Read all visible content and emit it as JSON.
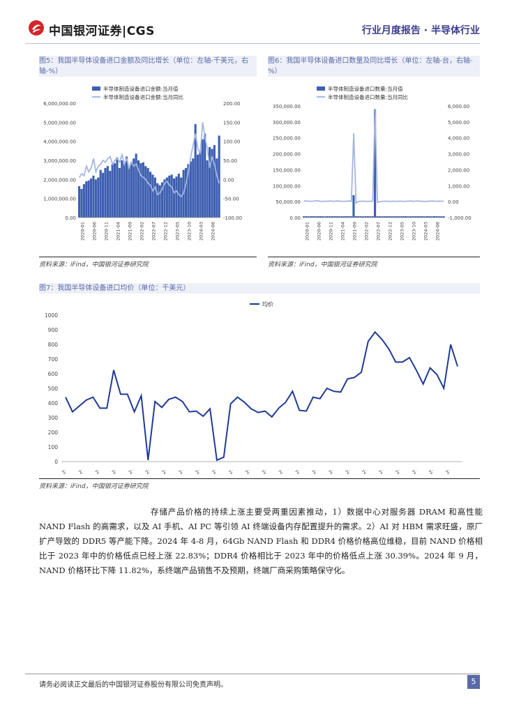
{
  "header": {
    "logo_text": "中国银河证券|CGS",
    "report_type": "行业月度报告 · 半导体行业"
  },
  "fig5": {
    "title": "图5：我国半导体设备进口金额及同比增长（单位：左轴-千美元，右轴-%）",
    "source": "资料来源：iFind，中国银河证券研究院"
  },
  "fig6": {
    "title": "图6：我国半导体设备进口数量及同比增长（单位：左轴-台，右轴-%）",
    "source": "资料来源：iFind，中国银河证券研究院"
  },
  "fig7": {
    "title": "图7：我国半导体设备进口均价（单位：千美元）",
    "source": "资料来源：iFind，中国银河证券研究院"
  },
  "body_text": "存储产品价格的持续上涨主要受两重因素推动，1）数据中心对服务器 DRAM 和高性能 NAND Flash 的高需求，以及 AI 手机、AI PC 等引领 AI 终端设备内存配置提升的需求。2）AI 对 HBM 需求旺盛，原厂扩产导致的 DDR5 等产能下降。2024 年 4-8 月，64Gb NAND Flash 和 DDR4 价格价格高位维稳，目前 NAND 价格相比于 2023 年中的价格低点已经上涨 22.83%；DDR4 价格相比于 2023 年中的价格低点上涨 30.39%。2024 年 9 月，NAND 价格环比下降 11.82%，系终端产品销售不及预期，终端厂商采购策略保守化。",
  "footer": {
    "disclaimer": "请务必阅读正文最后的中国银河证券股份有限公司免责声明。",
    "page": "5"
  },
  "chart_data": [
    {
      "type": "bar",
      "title": "图5：我国半导体设备进口金额及同比增长（单位：左轴-千美元，右轴-%）",
      "legend": [
        "半导体制造设备进口金额:当月值",
        "半导体制造设备进口金额:当月同比"
      ],
      "legend_position": "top-center",
      "x_ticks": [
        "2020-01",
        "2020-06",
        "2020-11",
        "2021-04",
        "2021-09",
        "2022-02",
        "2022-07",
        "2022-12",
        "2023-05",
        "2023-10",
        "2024-03",
        "2024-08"
      ],
      "y_ticks": [
        "6,000,000.00",
        "5,000,000.00",
        "4,000,000.00",
        "3,000,000.00",
        "2,000,000.00",
        "1,000,000.00",
        "0.00"
      ],
      "y2_ticks": [
        "200.00",
        "150.00",
        "100.00",
        "50.00",
        "0.00",
        "-50.00",
        "-100.00"
      ],
      "ylim": [
        0,
        6000000
      ],
      "y2lim": [
        -100,
        200
      ],
      "series": [
        {
          "name": "半导体制造设备进口金额:当月值",
          "type": "bar",
          "values": [
            1650000,
            1500000,
            1750000,
            1900000,
            1950000,
            2050000,
            2200000,
            2000000,
            2100000,
            2500000,
            2350000,
            2600000,
            2700000,
            2450000,
            2800000,
            2850000,
            3150000,
            2600000,
            3000000,
            2850000,
            3200000,
            2700000,
            2900000,
            3100000,
            3350000,
            3000000,
            2850000,
            2900000,
            2700000,
            2600000,
            2400000,
            2250000,
            2100000,
            1800000,
            1700000,
            1850000,
            2000000,
            2100000,
            2200000,
            2250000,
            2050000,
            2150000,
            2300000,
            2100000,
            2500000,
            2600000,
            2800000,
            2950000,
            3100000,
            4900000,
            3300000,
            3500000,
            4100000,
            4400000,
            3000000,
            3700000,
            3600000,
            3800000,
            3100000,
            4300000
          ]
        },
        {
          "name": "半导体制造设备进口金额:当月同比",
          "type": "line",
          "values": [
            5,
            15,
            10,
            35,
            20,
            30,
            55,
            20,
            35,
            40,
            50,
            45,
            55,
            60,
            40,
            50,
            55,
            45,
            65,
            40,
            55,
            30,
            45,
            35,
            40,
            25,
            10,
            5,
            0,
            -10,
            -15,
            -30,
            -20,
            -40,
            -35,
            -25,
            -10,
            -5,
            -15,
            -20,
            -35,
            -30,
            -40,
            -45,
            -35,
            -10,
            20,
            60,
            90,
            120,
            80,
            70,
            150,
            110,
            80,
            30,
            60,
            40,
            10,
            -10
          ]
        }
      ]
    },
    {
      "type": "bar",
      "title": "图6：我国半导体设备进口数量及同比增长（单位：左轴-台，右轴-%）",
      "legend": [
        "半导体制造设备进口数量:当月值",
        "半导体制造设备进口数量:当月同比"
      ],
      "legend_position": "top-center",
      "x_ticks": [
        "2020-01",
        "2020-06",
        "2020-11",
        "2021-04",
        "2021-09",
        "2022-02",
        "2022-07",
        "2022-12",
        "2023-05",
        "2023-10",
        "2024-03",
        "2024-08"
      ],
      "y_ticks": [
        "350,000.00",
        "300,000.00",
        "250,000.00",
        "200,000.00",
        "150,000.00",
        "100,000.00",
        "50,000.00",
        "0.00"
      ],
      "y2_ticks": [
        "6,000.00",
        "5,000.00",
        "4,000.00",
        "3,000.00",
        "2,000.00",
        "1,000.00",
        "0.00",
        "-1,000.00"
      ],
      "ylim": [
        0,
        350000
      ],
      "y2lim": [
        -1000,
        6000
      ],
      "series": [
        {
          "name": "半导体制造设备进口数量:当月值",
          "type": "bar",
          "values": [
            4000,
            4200,
            3900,
            4100,
            4300,
            4000,
            4500,
            4200,
            4100,
            4000,
            4200,
            4300,
            4100,
            4500,
            4300,
            4000,
            4200,
            4100,
            4300,
            4200,
            4000,
            70000,
            4200,
            4300,
            4100,
            4000,
            4200,
            4300,
            4000,
            4100,
            340000,
            4300,
            4100,
            4000,
            4200,
            4100,
            4300,
            4000,
            4100,
            4200,
            4000,
            4100,
            4200,
            4300,
            4100,
            4000,
            4200,
            4100,
            4300,
            4200,
            4100,
            4000,
            4200,
            4100,
            4000,
            4300,
            4200,
            4100,
            4000,
            4200
          ]
        },
        {
          "name": "半导体制造设备进口数量:当月同比",
          "type": "line",
          "values": [
            50,
            40,
            30,
            20,
            30,
            50,
            40,
            20,
            10,
            30,
            20,
            40,
            30,
            20,
            50,
            30,
            20,
            10,
            30,
            40,
            20,
            4300,
            -100,
            10,
            20,
            30,
            20,
            10,
            20,
            30,
            5800,
            -50,
            0,
            10,
            20,
            30,
            10,
            20,
            30,
            10,
            20,
            30,
            10,
            20,
            30,
            40,
            20,
            30,
            40,
            30,
            20,
            10,
            20,
            30,
            40,
            30,
            20,
            30,
            20,
            30
          ]
        }
      ]
    },
    {
      "type": "line",
      "title": "图7：我国半导体设备进口均价（单位：千美元）",
      "legend": [
        "均价"
      ],
      "legend_position": "top-center",
      "ylim": [
        0,
        1000
      ],
      "y_ticks": [
        "1000",
        "900",
        "800",
        "700",
        "600",
        "500",
        "400",
        "300",
        "200",
        "100",
        "0"
      ],
      "series": [
        {
          "name": "均价",
          "values": [
            440,
            340,
            380,
            420,
            440,
            365,
            365,
            625,
            460,
            460,
            340,
            450,
            10,
            410,
            370,
            425,
            440,
            410,
            340,
            345,
            310,
            360,
            10,
            30,
            395,
            440,
            405,
            360,
            335,
            345,
            305,
            365,
            405,
            480,
            350,
            345,
            440,
            430,
            500,
            480,
            475,
            565,
            575,
            610,
            820,
            885,
            835,
            770,
            680,
            680,
            710,
            625,
            530,
            640,
            595,
            500,
            800,
            650
          ]
        }
      ]
    }
  ]
}
